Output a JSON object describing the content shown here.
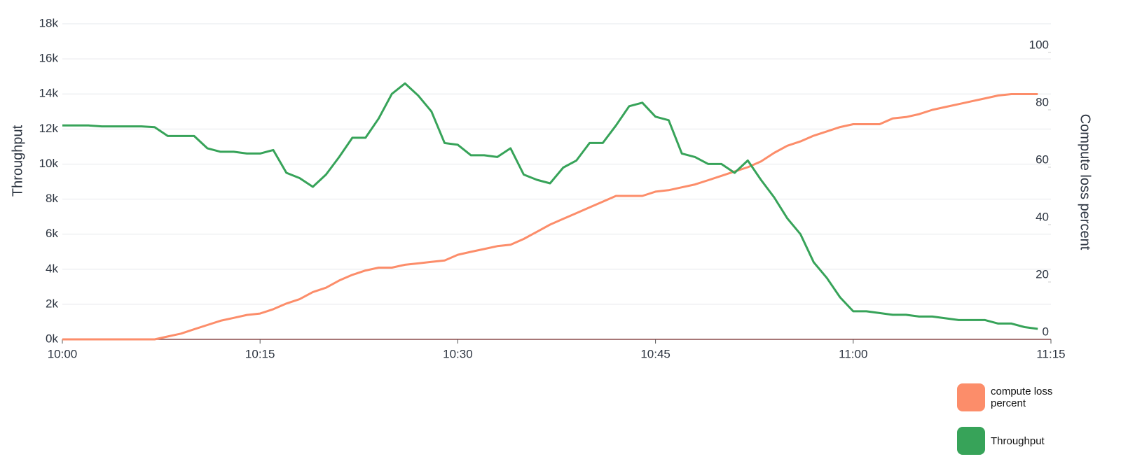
{
  "chart_data": {
    "type": "line",
    "ylabel": "Throughput",
    "y2label": "Compute loss percent",
    "x": [
      "10:00",
      "10:01",
      "10:02",
      "10:03",
      "10:04",
      "10:05",
      "10:06",
      "10:07",
      "10:08",
      "10:09",
      "10:10",
      "10:11",
      "10:12",
      "10:13",
      "10:14",
      "10:15",
      "10:16",
      "10:17",
      "10:18",
      "10:19",
      "10:20",
      "10:21",
      "10:22",
      "10:23",
      "10:24",
      "10:25",
      "10:26",
      "10:27",
      "10:28",
      "10:29",
      "10:30",
      "10:31",
      "10:32",
      "10:33",
      "10:34",
      "10:35",
      "10:36",
      "10:37",
      "10:38",
      "10:39",
      "10:40",
      "10:41",
      "10:42",
      "10:43",
      "10:44",
      "10:45",
      "10:46",
      "10:47",
      "10:48",
      "10:49",
      "10:50",
      "10:51",
      "10:52",
      "10:53",
      "10:54",
      "10:55",
      "10:56",
      "10:57",
      "10:58",
      "10:59",
      "11:00",
      "11:01",
      "11:02",
      "11:03",
      "11:04",
      "11:05",
      "11:06",
      "11:07",
      "11:08",
      "11:09",
      "11:10",
      "11:11",
      "11:12",
      "11:13",
      "11:14"
    ],
    "xlim": [
      "10:00",
      "11:15"
    ],
    "xticks": [
      "10:00",
      "10:15",
      "10:30",
      "10:45",
      "11:00",
      "11:15"
    ],
    "ylim": [
      0,
      18000
    ],
    "yticks": [
      {
        "value": 0,
        "label": "0k"
      },
      {
        "value": 2000,
        "label": "2k"
      },
      {
        "value": 4000,
        "label": "4k"
      },
      {
        "value": 6000,
        "label": "6k"
      },
      {
        "value": 8000,
        "label": "8k"
      },
      {
        "value": 10000,
        "label": "10k"
      },
      {
        "value": 12000,
        "label": "12k"
      },
      {
        "value": 14000,
        "label": "14k"
      },
      {
        "value": 16000,
        "label": "16k"
      },
      {
        "value": 18000,
        "label": "18k"
      }
    ],
    "y2lim": [
      0,
      110
    ],
    "y2ticks": [
      0,
      20,
      40,
      60,
      80,
      100
    ],
    "grid": true,
    "series": [
      {
        "name": "compute loss percent",
        "color": "#fc8d6a",
        "axis": "y2",
        "values": [
          0,
          0,
          0,
          0,
          0,
          0,
          0,
          0,
          1,
          2,
          3.5,
          5,
          6.5,
          7.5,
          8.5,
          9,
          10.5,
          12.5,
          14,
          16.5,
          18,
          20.5,
          22.5,
          24,
          25,
          25,
          26,
          26.5,
          27,
          27.5,
          29.5,
          30.5,
          31.5,
          32.5,
          33,
          35,
          37.5,
          40,
          42,
          44,
          46,
          48,
          50,
          50,
          50,
          51.5,
          52,
          53,
          54,
          55.5,
          57,
          58.5,
          60,
          62,
          65,
          67.5,
          69,
          71,
          72.5,
          74,
          75,
          75,
          75,
          77,
          77.5,
          78.5,
          80,
          81,
          82,
          83,
          84,
          85,
          85.5,
          85.5,
          85.5
        ]
      },
      {
        "name": "Throughput",
        "color": "#37a359",
        "values": [
          12200,
          12200,
          12200,
          12150,
          12150,
          12150,
          12150,
          12100,
          11600,
          11600,
          11600,
          10900,
          10700,
          10700,
          10600,
          10600,
          10800,
          9500,
          9200,
          8700,
          9400,
          10400,
          11500,
          11500,
          12600,
          14000,
          14600,
          13900,
          13000,
          11200,
          11100,
          10500,
          10500,
          10400,
          10900,
          9400,
          9100,
          8900,
          9800,
          10200,
          11200,
          11200,
          12200,
          13300,
          13500,
          12700,
          12500,
          10600,
          10400,
          10000,
          10000,
          9500,
          10200,
          9100,
          8100,
          6900,
          6000,
          4400,
          3500,
          2400,
          1600,
          1600,
          1500,
          1400,
          1400,
          1300,
          1300,
          1200,
          1100,
          1100,
          1100,
          900,
          900,
          700,
          600
        ]
      }
    ]
  }
}
